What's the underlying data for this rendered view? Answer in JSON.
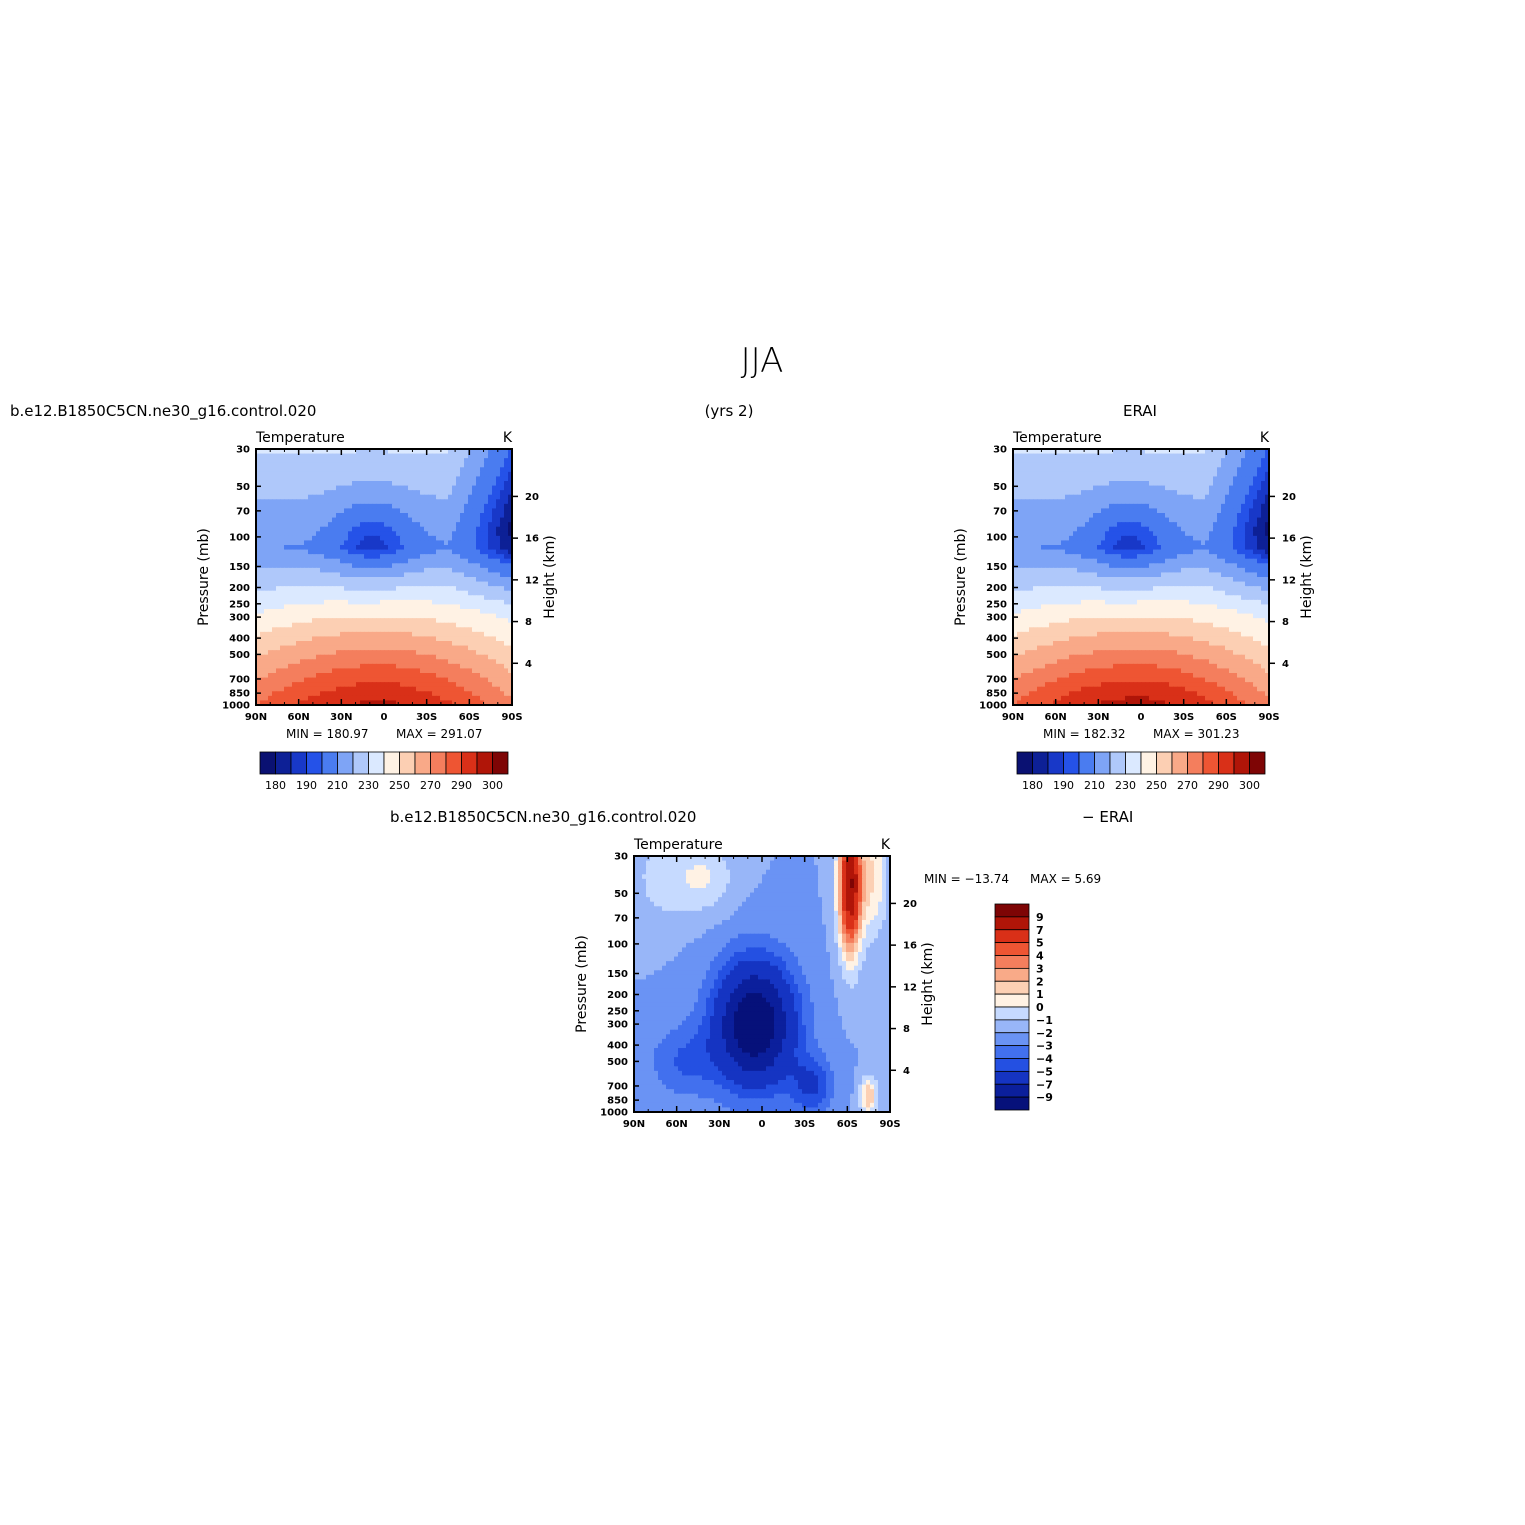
{
  "figure": {
    "title": "JJA",
    "left_header": "b.e12.B1850C5CN.ne30_g16.control.020",
    "center_header": "(yrs 2)",
    "right_header": "ERAI",
    "diff_left_header": "b.e12.B1850C5CN.ne30_g16.control.020",
    "diff_right_header": "− ERAI"
  },
  "chart_data": [
    {
      "type": "heatmap",
      "id": "model",
      "variable": "Temperature",
      "units": "K",
      "ylabel_left": "Pressure  (mb)",
      "ylabel_right": "Height  (km)",
      "x_ticks": [
        "90N",
        "60N",
        "30N",
        "0",
        "30S",
        "60S",
        "90S"
      ],
      "x_range": [
        90,
        -90
      ],
      "y_ticks": [
        30,
        50,
        70,
        100,
        150,
        200,
        250,
        300,
        400,
        500,
        700,
        850,
        1000
      ],
      "y_range": [
        30,
        1000
      ],
      "y_log": true,
      "height_ticks": [
        4,
        8,
        12,
        16,
        20
      ],
      "min_text": "MIN  =  180.97",
      "max_text": "MAX  =  291.07",
      "colorbar_orientation": "horizontal",
      "colorbar_labels": [
        "180",
        "190",
        "210",
        "230",
        "250",
        "270",
        "290",
        "300"
      ],
      "colors": [
        "#0a1172",
        "#0d2096",
        "#1838c8",
        "#2552e8",
        "#4a7cf0",
        "#7ea4f6",
        "#afc8fa",
        "#dbe9ff",
        "#fff2e4",
        "#fccfb3",
        "#f9a988",
        "#f47e5d",
        "#ee5533",
        "#d93018",
        "#b01508",
        "#7e0505"
      ],
      "levels": [
        175,
        180,
        185,
        190,
        200,
        210,
        220,
        230,
        240,
        250,
        260,
        270,
        280,
        290,
        300
      ]
    },
    {
      "type": "heatmap",
      "id": "obs",
      "variable": "Temperature",
      "units": "K",
      "ylabel_left": "Pressure  (mb)",
      "ylabel_right": "Height  (km)",
      "x_ticks": [
        "90N",
        "60N",
        "30N",
        "0",
        "30S",
        "60S",
        "90S"
      ],
      "x_range": [
        90,
        -90
      ],
      "y_ticks": [
        30,
        50,
        70,
        100,
        150,
        200,
        250,
        300,
        400,
        500,
        700,
        850,
        1000
      ],
      "y_range": [
        30,
        1000
      ],
      "y_log": true,
      "height_ticks": [
        4,
        8,
        12,
        16,
        20
      ],
      "min_text": "MIN  =  182.32",
      "max_text": "MAX  =  301.23",
      "colorbar_orientation": "horizontal",
      "colorbar_labels": [
        "180",
        "190",
        "210",
        "230",
        "250",
        "270",
        "290",
        "300"
      ],
      "colors": [
        "#0a1172",
        "#0d2096",
        "#1838c8",
        "#2552e8",
        "#4a7cf0",
        "#7ea4f6",
        "#afc8fa",
        "#dbe9ff",
        "#fff2e4",
        "#fccfb3",
        "#f9a988",
        "#f47e5d",
        "#ee5533",
        "#d93018",
        "#b01508",
        "#7e0505"
      ],
      "levels": [
        175,
        180,
        185,
        190,
        200,
        210,
        220,
        230,
        240,
        250,
        260,
        270,
        280,
        290,
        300
      ]
    },
    {
      "type": "heatmap",
      "id": "diff",
      "variable": "Temperature",
      "units": "K",
      "ylabel_left": "Pressure  (mb)",
      "ylabel_right": "Height  (km)",
      "x_ticks": [
        "90N",
        "60N",
        "30N",
        "0",
        "30S",
        "60S",
        "90S"
      ],
      "x_range": [
        90,
        -90
      ],
      "y_ticks": [
        30,
        50,
        70,
        100,
        150,
        200,
        250,
        300,
        400,
        500,
        700,
        850,
        1000
      ],
      "y_range": [
        30,
        1000
      ],
      "y_log": true,
      "height_ticks": [
        4,
        8,
        12,
        16,
        20
      ],
      "min_text": "MIN  =  −13.74",
      "max_text": "MAX  =      5.69",
      "colorbar_orientation": "vertical",
      "colorbar_labels": [
        "−9",
        "−7",
        "−5",
        "−4",
        "−3",
        "−2",
        "−1",
        "0",
        "1",
        "2",
        "3",
        "4",
        "5",
        "7",
        "9"
      ],
      "colors": [
        "#06117a",
        "#0b1f9c",
        "#1534c2",
        "#2450e2",
        "#4270ee",
        "#6a93f4",
        "#98b6f8",
        "#c6daff",
        "#fff2e4",
        "#fcd0b4",
        "#f9aa88",
        "#f47e5d",
        "#ee5533",
        "#d93018",
        "#b01508",
        "#7e0505"
      ],
      "levels": [
        -9,
        -7,
        -5,
        -4,
        -3,
        -2,
        -1,
        0,
        1,
        2,
        3,
        4,
        5,
        7,
        9
      ]
    }
  ]
}
